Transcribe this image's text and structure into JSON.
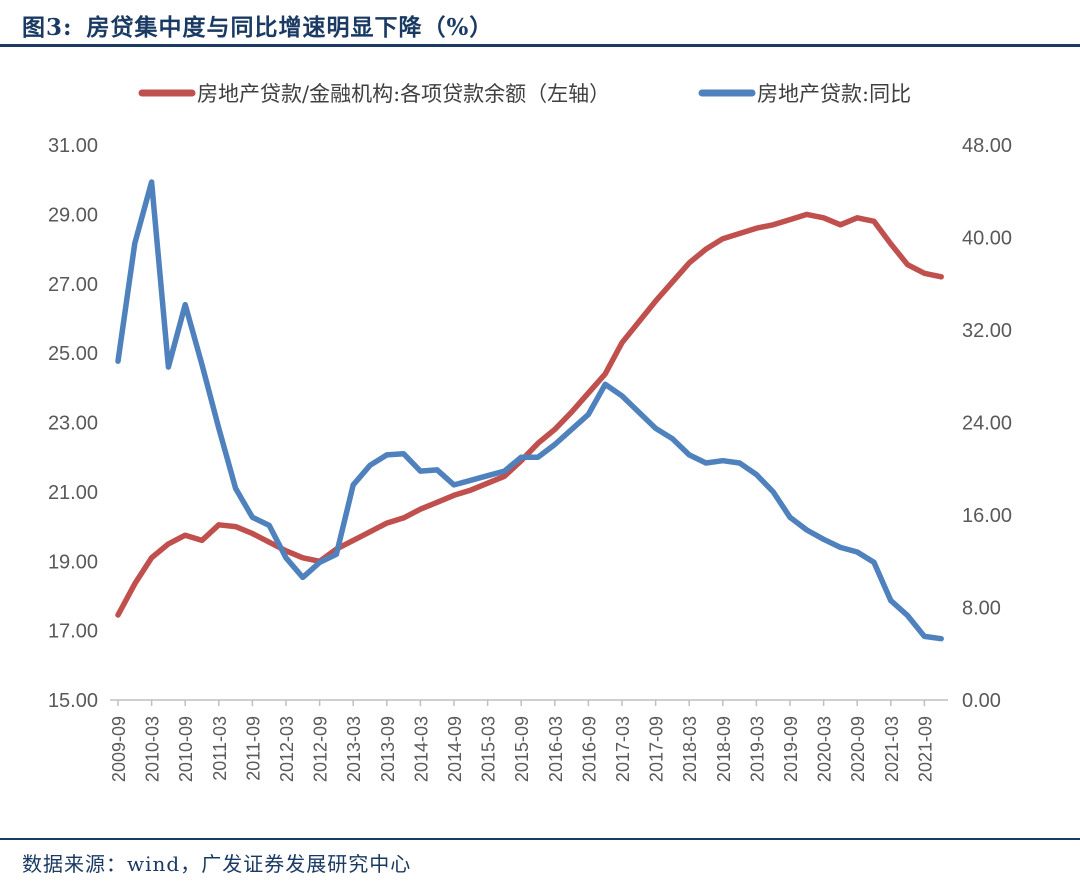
{
  "title": {
    "prefix": "图3:",
    "text": "房贷集中度与同比增速明显下降（%）"
  },
  "source": {
    "text": "数据来源：wind，广发证券发展研究中心"
  },
  "colors": {
    "navy": "#1A3A63",
    "red": "#C0504D",
    "blue": "#4F81BD",
    "tick_text": "#595959",
    "legend_text": "#3F3F3F",
    "axis_line": "#BFBFBF"
  },
  "chart_data": {
    "type": "line",
    "title": "房贷集中度与同比增速明显下降（%）",
    "grid": false,
    "legend_position": "top",
    "legend": [
      {
        "name": "房地产贷款/金融机构:各项贷款余额（左轴）",
        "color": "#C0504D",
        "axis": "left"
      },
      {
        "name": "房地产贷款:同比",
        "color": "#4F81BD",
        "axis": "right"
      }
    ],
    "left_axis": {
      "min": 15,
      "max": 31,
      "step": 2,
      "tick_labels": [
        "15.00",
        "17.00",
        "19.00",
        "21.00",
        "23.00",
        "25.00",
        "27.00",
        "29.00",
        "31.00"
      ]
    },
    "right_axis": {
      "min": 0,
      "max": 48,
      "step": 8,
      "tick_labels": [
        "0.00",
        "8.00",
        "16.00",
        "24.00",
        "32.00",
        "40.00",
        "48.00"
      ]
    },
    "x_tick_labels": [
      "2009-09",
      "2010-03",
      "2010-09",
      "2011-03",
      "2011-09",
      "2012-03",
      "2012-09",
      "2013-03",
      "2013-09",
      "2014-03",
      "2014-09",
      "2015-03",
      "2015-09",
      "2016-03",
      "2016-09",
      "2017-03",
      "2017-09",
      "2018-03",
      "2018-09",
      "2019-03",
      "2019-09",
      "2020-03",
      "2020-09",
      "2021-03",
      "2021-09"
    ],
    "x": [
      "2009-09",
      "2009-12",
      "2010-03",
      "2010-06",
      "2010-09",
      "2010-12",
      "2011-03",
      "2011-06",
      "2011-09",
      "2011-12",
      "2012-03",
      "2012-06",
      "2012-09",
      "2012-12",
      "2013-03",
      "2013-06",
      "2013-09",
      "2013-12",
      "2014-03",
      "2014-06",
      "2014-09",
      "2014-12",
      "2015-03",
      "2015-06",
      "2015-09",
      "2015-12",
      "2016-03",
      "2016-06",
      "2016-09",
      "2016-12",
      "2017-03",
      "2017-06",
      "2017-09",
      "2017-12",
      "2018-03",
      "2018-06",
      "2018-09",
      "2018-12",
      "2019-03",
      "2019-06",
      "2019-09",
      "2019-12",
      "2020-03",
      "2020-06",
      "2020-09",
      "2020-12",
      "2021-03",
      "2021-06",
      "2021-09",
      "2021-12"
    ],
    "series": [
      {
        "name": "房地产贷款/金融机构:各项贷款余额（左轴）",
        "axis": "left",
        "color": "#C0504D",
        "values": [
          17.45,
          18.35,
          19.1,
          19.5,
          19.75,
          19.6,
          20.05,
          20.0,
          19.8,
          19.55,
          19.3,
          19.1,
          19.0,
          19.35,
          19.6,
          19.85,
          20.1,
          20.25,
          20.5,
          20.7,
          20.9,
          21.05,
          21.25,
          21.45,
          21.9,
          22.4,
          22.8,
          23.3,
          23.85,
          24.4,
          25.3,
          25.9,
          26.5,
          27.05,
          27.6,
          28.0,
          28.3,
          28.45,
          28.6,
          28.7,
          28.85,
          29.0,
          28.9,
          28.7,
          28.9,
          28.8,
          28.15,
          27.55,
          27.3,
          27.2
        ]
      },
      {
        "name": "房地产贷款:同比",
        "axis": "right",
        "color": "#4F81BD",
        "values": [
          29.3,
          39.5,
          44.8,
          28.8,
          34.2,
          29.0,
          23.5,
          18.3,
          15.8,
          15.1,
          12.3,
          10.6,
          11.9,
          12.6,
          18.6,
          20.3,
          21.2,
          21.3,
          19.8,
          19.9,
          18.6,
          19.0,
          19.4,
          19.8,
          21.0,
          21.0,
          22.1,
          23.4,
          24.7,
          27.3,
          26.3,
          24.9,
          23.5,
          22.6,
          21.2,
          20.5,
          20.7,
          20.5,
          19.5,
          18.0,
          15.8,
          14.7,
          13.9,
          13.2,
          12.8,
          11.9,
          8.6,
          7.3,
          5.5,
          5.3
        ]
      }
    ]
  }
}
